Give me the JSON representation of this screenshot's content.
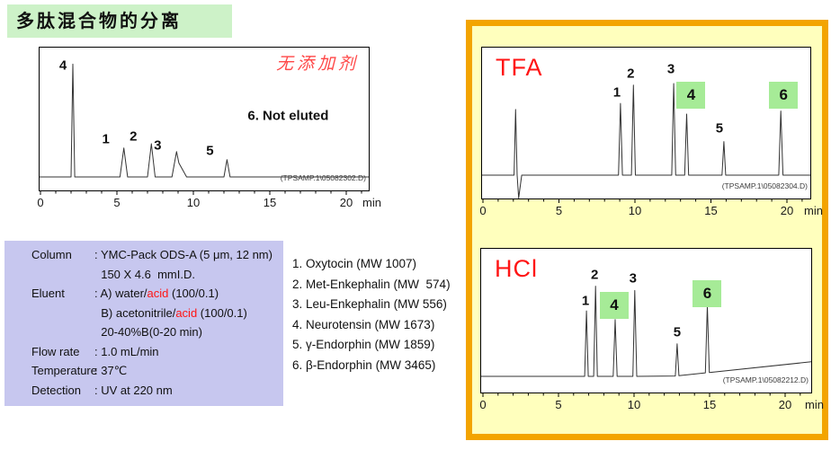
{
  "page": {
    "title": "多肽混合物的分离"
  },
  "colors": {
    "title_green": "#cdf2c8",
    "table_lavender": "#c7c7ef",
    "panel_border_orange": "#f3a400",
    "panel_fill_yellow": "#ffffbd",
    "highlight_green": "#a6eb97",
    "red": "#ff1515",
    "soft_red": "#ff4747"
  },
  "spec_table": {
    "rows": [
      {
        "label": "Column",
        "value": [
          {
            "t": ": YMC-Pack ODS-A (5 μm, 12 nm)"
          }
        ]
      },
      {
        "label": "",
        "value": [
          {
            "t": "  150 X 4.6  mmI.D."
          }
        ]
      },
      {
        "label": "Eluent",
        "value": [
          {
            "t": ": A) water/"
          },
          {
            "t": "acid",
            "red": true
          },
          {
            "t": " (100/0.1)"
          }
        ]
      },
      {
        "label": "",
        "value": [
          {
            "t": "  B) acetonitrile/"
          },
          {
            "t": "acid",
            "red": true
          },
          {
            "t": " (100/0.1)"
          }
        ]
      },
      {
        "label": "",
        "value": [
          {
            "t": "  20-40%B(0-20 min)"
          }
        ]
      },
      {
        "label": "Flow rate",
        "value": [
          {
            "t": ": 1.0 mL/min"
          }
        ]
      },
      {
        "label": "Temperature",
        "value": [
          {
            "t": ": 37℃"
          }
        ]
      },
      {
        "label": "Detection",
        "value": [
          {
            "t": ": UV at 220 nm"
          }
        ]
      }
    ]
  },
  "peptide_list": {
    "items": [
      "1. Oxytocin (MW 1007)",
      "2. Met-Enkephalin (MW  574)",
      "3. Leu-Enkephalin (MW 556)",
      "4. Neurotensin (MW 1673)",
      "5. γ-Endorphin (MW 1859)",
      "6. β-Endorphin (MW 3465)"
    ]
  },
  "chart_data": [
    {
      "id": "no_additive",
      "type": "line",
      "title": "无添加剂",
      "title_color": "#ff4747",
      "file_label": "(TPSAMP.1\\05082302.D)",
      "x_unit": "min",
      "x_ticks": [
        0,
        5,
        10,
        15,
        20
      ],
      "x_minor_step": 1,
      "x_max": 21.5,
      "annotation": {
        "text": "6. Not eluted",
        "t": 16.2,
        "y_frac": 0.48
      },
      "peaks": [
        {
          "label": "4",
          "t": 2.12,
          "height": 0.78,
          "width": 0.12,
          "label_dx": -11,
          "label_dy": 2
        },
        {
          "label": "1",
          "t": 5.45,
          "height": 0.2,
          "width": 0.25,
          "label_dx": -20,
          "label_dy": -10
        },
        {
          "label": "2",
          "t": 7.25,
          "height": 0.23,
          "width": 0.25,
          "label_dx": -20,
          "label_dy": -8
        },
        {
          "label": "3",
          "t": 8.9,
          "height": 0.175,
          "width": 0.3,
          "tail": 2.2,
          "label_dx": -21,
          "label_dy": -7
        },
        {
          "label": "5",
          "t": 12.2,
          "height": 0.12,
          "width": 0.2,
          "label_dx": -19,
          "label_dy": -10
        }
      ]
    },
    {
      "id": "tfa",
      "type": "line",
      "title": "TFA",
      "title_color": "#ff1515",
      "file_label": "(TPSAMP.1\\05082304.D)",
      "x_unit": "min",
      "x_ticks": [
        0,
        5,
        10,
        15,
        20
      ],
      "x_minor_step": 1,
      "x_max": 21.6,
      "peaks": [
        {
          "label": "",
          "t": 2.15,
          "height": 0.43,
          "width": 0.1,
          "dip": 0.15
        },
        {
          "label": "1",
          "t": 9.05,
          "height": 0.47,
          "width": 0.13,
          "label_dx": -4,
          "label_dy": -12
        },
        {
          "label": "2",
          "t": 9.9,
          "height": 0.59,
          "width": 0.13,
          "label_dx": -3,
          "label_dy": -13
        },
        {
          "label": "3",
          "t": 12.55,
          "height": 0.6,
          "width": 0.13,
          "label_dx": -3,
          "label_dy": -16
        },
        {
          "label": "4",
          "t": 13.4,
          "height": 0.4,
          "width": 0.13,
          "highlight": true,
          "label_dx": 5,
          "label_dy": -21
        },
        {
          "label": "5",
          "t": 15.85,
          "height": 0.22,
          "width": 0.12,
          "label_dx": -5,
          "label_dy": -15
        },
        {
          "label": "6",
          "t": 19.6,
          "height": 0.42,
          "width": 0.14,
          "highlight": true,
          "label_dx": 3,
          "label_dy": -18
        }
      ]
    },
    {
      "id": "hcl",
      "type": "line",
      "title": "HCl",
      "title_color": "#ff1515",
      "file_label": "(TPSAMP.1\\05082212.D)",
      "x_unit": "min",
      "x_ticks": [
        0,
        5,
        10,
        15,
        20
      ],
      "x_minor_step": 1,
      "x_max": 21.8,
      "baseline_ramp": {
        "start_t": 12.5,
        "rise": 0.1
      },
      "peaks": [
        {
          "label": "1",
          "t": 6.85,
          "height": 0.45,
          "width": 0.12,
          "label_dx": -1,
          "label_dy": -11
        },
        {
          "label": "2",
          "t": 7.45,
          "height": 0.62,
          "width": 0.12,
          "label_dx": -1,
          "label_dy": -13
        },
        {
          "label": "4",
          "t": 8.75,
          "height": 0.39,
          "width": 0.13,
          "highlight": true,
          "label_dx": -1,
          "label_dy": -16
        },
        {
          "label": "3",
          "t": 10.05,
          "height": 0.59,
          "width": 0.13,
          "label_dx": -2,
          "label_dy": -13
        },
        {
          "label": "5",
          "t": 12.85,
          "height": 0.22,
          "width": 0.12,
          "label_dx": 0,
          "label_dy": -13
        },
        {
          "label": "6",
          "t": 14.85,
          "height": 0.46,
          "width": 0.13,
          "highlight": true,
          "label_dx": 0,
          "label_dy": -13
        }
      ]
    }
  ]
}
